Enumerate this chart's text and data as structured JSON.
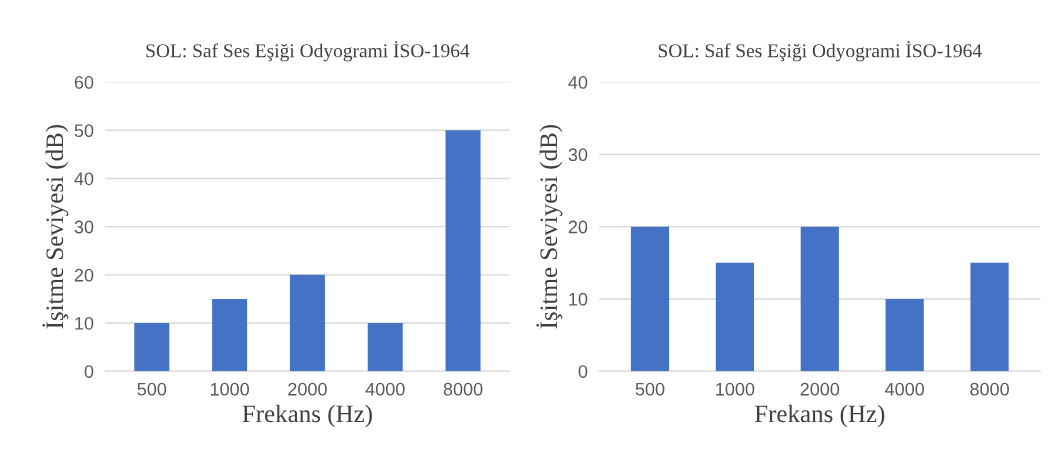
{
  "chart_data": [
    {
      "type": "bar",
      "title": "SOL: Saf Ses Eşiği Odyogrami İSO-1964",
      "xlabel": "Frekans (Hz)",
      "ylabel": "İşitme Seviyesi (dB)",
      "categories": [
        "500",
        "1000",
        "2000",
        "4000",
        "8000"
      ],
      "values": [
        10,
        15,
        20,
        10,
        50
      ],
      "color": "#4472c4",
      "ylim": [
        0,
        60
      ],
      "yticks": [
        0,
        10,
        20,
        30,
        40,
        50,
        60
      ],
      "grid": "y",
      "legend": false
    },
    {
      "type": "bar",
      "title": "SOL: Saf Ses Eşiği Odyogrami İSO-1964",
      "xlabel": "Frekans (Hz)",
      "ylabel": "İşitme Seviyesi (dB)",
      "categories": [
        "500",
        "1000",
        "2000",
        "4000",
        "8000"
      ],
      "values": [
        20,
        15,
        20,
        10,
        15
      ],
      "color": "#4472c4",
      "ylim": [
        0,
        40
      ],
      "yticks": [
        0,
        10,
        20,
        30,
        40
      ],
      "grid": "y",
      "legend": false
    }
  ]
}
